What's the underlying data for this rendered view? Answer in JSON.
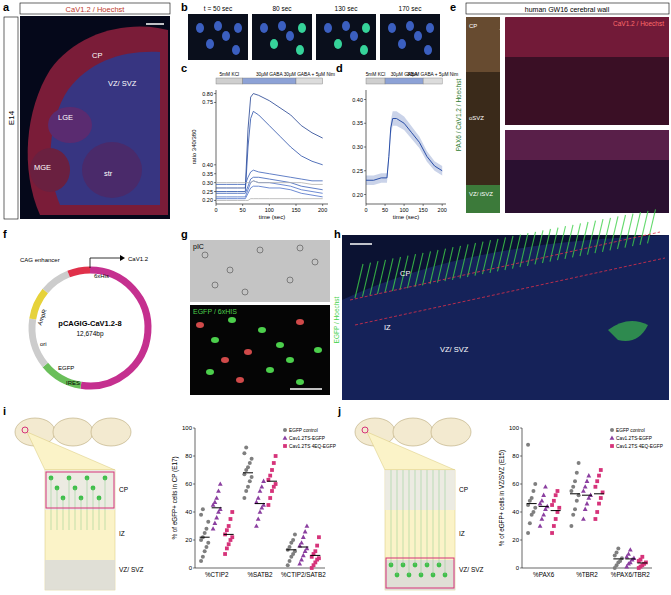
{
  "panel_labels": [
    "a",
    "b",
    "c",
    "d",
    "e",
    "f",
    "g",
    "h",
    "i",
    "j"
  ],
  "panels": {
    "a": {
      "stage": "E14",
      "title": "CaV1.2 / Hoechst",
      "regions": [
        "CP",
        "VZ/ SVZ",
        "LGE",
        "MGE",
        "str"
      ]
    },
    "b": {
      "times": [
        "t = 50 sec",
        "80 sec",
        "130 sec",
        "170 sec"
      ]
    },
    "e": {
      "title": "human GW16 cerebral wall",
      "stain_left": "PAX6 / CaV1.2 / Hoechst",
      "stain_right": "CaV1.2 / Hoechst",
      "regions": [
        "CP",
        "oSVZ",
        "VZ/ iSVZ"
      ]
    },
    "f": {
      "name": "pCAGIG-CaV1.2-8",
      "size": "12,674bp",
      "features": [
        "CAG enhancer",
        "CaV1.2",
        "6xHis",
        "AmpR",
        "ori",
        "EGFP",
        "IRES"
      ]
    },
    "g": {
      "top": "pIC",
      "bottom": "EGFP / 6xHIS"
    },
    "h": {
      "stain": "EGFP / Hoechst",
      "regions": [
        "CP",
        "IZ",
        "VZ/ SVZ"
      ]
    },
    "i": {
      "regions": [
        "CP",
        "IZ",
        "VZ/ SVZ"
      ]
    },
    "j": {
      "regions": [
        "CP",
        "IZ",
        "VZ/ SVZ"
      ]
    }
  },
  "chart_data": [
    {
      "type": "line",
      "x_label": "time (sec)",
      "y_label": "ratio 340/380",
      "x": [
        0,
        20,
        40,
        55,
        60,
        65,
        70,
        80,
        100,
        120,
        140,
        160,
        180,
        200
      ],
      "xlim": [
        0,
        210
      ],
      "xticks": [
        0,
        50,
        100,
        150,
        200
      ],
      "ylim": [
        0.18,
        0.82
      ],
      "yticks": [
        {
          "value": 0.2,
          "label": "0.20"
        },
        {
          "value": 0.25,
          "label": "0.25"
        },
        {
          "value": 0.3,
          "label": "0.30"
        },
        {
          "value": 0.35,
          "label": "0.35"
        },
        {
          "value": 0.4,
          "label": "0.40"
        },
        {
          "value": 0.75,
          "label": "0.75"
        },
        {
          "value": 0.8,
          "label": "0.80"
        }
      ],
      "stimuli": [
        {
          "label": "5mM KCl",
          "start": 0,
          "end": 50
        },
        {
          "label": "30µM GABA",
          "start": 50,
          "end": 150
        },
        {
          "label": "30µM GABA + 5µM Nim",
          "start": 150,
          "end": 200
        }
      ],
      "series": [
        {
          "color": "#1f3f8f",
          "values": [
            0.27,
            0.27,
            0.27,
            0.27,
            0.6,
            0.78,
            0.8,
            0.79,
            0.76,
            0.72,
            0.68,
            0.62,
            0.58,
            0.55
          ]
        },
        {
          "color": "#2a4fa8",
          "values": [
            0.25,
            0.25,
            0.25,
            0.25,
            0.5,
            0.66,
            0.7,
            0.68,
            0.62,
            0.56,
            0.5,
            0.45,
            0.42,
            0.4
          ]
        },
        {
          "color": "#3a5fb8",
          "values": [
            0.29,
            0.29,
            0.29,
            0.29,
            0.33,
            0.36,
            0.37,
            0.36,
            0.35,
            0.34,
            0.33,
            0.32,
            0.31,
            0.31
          ]
        },
        {
          "color": "#3a5fb8",
          "values": [
            0.24,
            0.24,
            0.24,
            0.24,
            0.28,
            0.32,
            0.33,
            0.33,
            0.32,
            0.31,
            0.3,
            0.28,
            0.27,
            0.26
          ]
        },
        {
          "color": "#4a6fc8",
          "values": [
            0.22,
            0.22,
            0.22,
            0.22,
            0.26,
            0.3,
            0.31,
            0.3,
            0.3,
            0.29,
            0.28,
            0.26,
            0.25,
            0.24
          ]
        },
        {
          "color": "#4a6fc8",
          "values": [
            0.21,
            0.21,
            0.21,
            0.21,
            0.24,
            0.27,
            0.28,
            0.28,
            0.27,
            0.27,
            0.26,
            0.24,
            0.23,
            0.22
          ]
        },
        {
          "color": "#b0b0b0",
          "values": [
            0.3,
            0.3,
            0.3,
            0.3,
            0.3,
            0.3,
            0.31,
            0.3,
            0.3,
            0.3,
            0.3,
            0.3,
            0.29,
            0.29
          ]
        },
        {
          "color": "#b0b0b0",
          "values": [
            0.2,
            0.2,
            0.2,
            0.2,
            0.2,
            0.21,
            0.21,
            0.21,
            0.21,
            0.21,
            0.21,
            0.21,
            0.21,
            0.21
          ]
        }
      ]
    },
    {
      "type": "line",
      "x": [
        0,
        20,
        40,
        55,
        60,
        65,
        70,
        80,
        100,
        120,
        140,
        160,
        180,
        200
      ],
      "xlim": [
        0,
        210
      ],
      "xticks": [
        0,
        50,
        100,
        150,
        200
      ],
      "x_label": "time (sec)",
      "ylim": [
        0.18,
        0.42
      ],
      "yticks": [
        {
          "value": 0.2,
          "label": "0.20"
        },
        {
          "value": 0.25,
          "label": "0.25"
        },
        {
          "value": 0.3,
          "label": "0.30"
        },
        {
          "value": 0.35,
          "label": "0.35"
        },
        {
          "value": 0.4,
          "label": "0.40"
        }
      ],
      "stimuli": [
        {
          "label": "5mM KCl",
          "start": 0,
          "end": 50
        },
        {
          "label": "30µM GABA",
          "start": 50,
          "end": 150
        },
        {
          "label": "30µM GABA + 5µM Nim",
          "start": 150,
          "end": 200
        }
      ],
      "color": "#2a4fa8",
      "values": [
        0.23,
        0.23,
        0.235,
        0.235,
        0.28,
        0.34,
        0.36,
        0.36,
        0.35,
        0.33,
        0.31,
        0.28,
        0.26,
        0.25
      ],
      "errors": [
        0.01,
        0.01,
        0.01,
        0.01,
        0.012,
        0.015,
        0.015,
        0.015,
        0.014,
        0.013,
        0.012,
        0.011,
        0.01,
        0.01
      ]
    },
    {
      "type": "dot",
      "y_label": "% of eGFP+ cells in CP (E17)",
      "categories": [
        "%CTIP2",
        "%SATB2",
        "%CTIP2/SATB2"
      ],
      "ylim": [
        0,
        100
      ],
      "yticks": [
        0,
        20,
        40,
        60,
        80,
        100
      ],
      "legend": "upper right",
      "series": [
        {
          "name": "EGFP control",
          "color": "#7f7f7f",
          "marker": "circle",
          "values": [
            [
              5,
              8,
              12,
              15,
              18,
              20,
              22,
              25,
              28,
              33,
              38,
              42
            ],
            [
              50,
              55,
              58,
              62,
              65,
              67,
              70,
              72,
              75,
              78,
              82,
              86
            ],
            [
              2,
              5,
              8,
              10,
              12,
              13,
              15,
              18,
              20,
              24
            ]
          ],
          "means": [
            22,
            68,
            13
          ]
        },
        {
          "name": "Cav1.2TS-EGFP",
          "color": "#8b3fa0",
          "marker": "triangle",
          "values": [
            [
              28,
              32,
              36,
              40,
              42,
              45,
              47,
              50,
              55,
              60
            ],
            [
              30,
              35,
              40,
              43,
              45,
              47,
              50,
              55,
              58,
              62
            ],
            [
              3,
              6,
              9,
              12,
              14,
              16,
              18,
              22,
              26,
              30
            ]
          ],
          "means": [
            43,
            46,
            15
          ]
        },
        {
          "name": "Cav1.2TS 4EQ-EGFP",
          "color": "#d6337a",
          "marker": "square",
          "values": [
            [
              10,
              14,
              17,
              20,
              22,
              24,
              27,
              30,
              35,
              40
            ],
            [
              45,
              50,
              55,
              58,
              60,
              63,
              66,
              70,
              75,
              80
            ],
            [
              0,
              2,
              4,
              6,
              7,
              8,
              10,
              12,
              16,
              22
            ]
          ],
          "means": [
            24,
            62,
            9
          ]
        }
      ]
    },
    {
      "type": "dot",
      "y_label": "% of eGFP+ cells in VZ/SVZ (E15)",
      "categories": [
        "%PAX6",
        "%TBR2",
        "%PAX6/TBR2"
      ],
      "ylim": [
        0,
        100
      ],
      "yticks": [
        0,
        20,
        40,
        60,
        80,
        100
      ],
      "legend": "upper right",
      "series": [
        {
          "name": "EGFP control",
          "color": "#7f7f7f",
          "marker": "circle",
          "values": [
            [
              25,
              32,
              38,
              40,
              43,
              45,
              48,
              50,
              55,
              60,
              88
            ],
            [
              30,
              38,
              42,
              48,
              52,
              55,
              58,
              62,
              68,
              75
            ],
            [
              0,
              2,
              4,
              5,
              7,
              9,
              11,
              14
            ]
          ],
          "means": [
            46,
            53,
            6.5
          ]
        },
        {
          "name": "Cav1.2TS-EGFP",
          "color": "#8b3fa0",
          "marker": "triangle",
          "values": [
            [
              30,
              35,
              38,
              42,
              44,
              46,
              48,
              52,
              58
            ],
            [
              35,
              42,
              46,
              50,
              52,
              55,
              58,
              62,
              66
            ],
            [
              1,
              3,
              4,
              6,
              7,
              8,
              10,
              13
            ]
          ],
          "means": [
            44,
            52,
            6.5
          ]
        },
        {
          "name": "Cav1.2TS 4EQ-EGFP",
          "color": "#d6337a",
          "marker": "square",
          "values": [
            [
              25,
              30,
              35,
              40,
              43,
              45,
              48,
              52,
              55
            ],
            [
              35,
              40,
              46,
              50,
              54,
              58,
              62,
              66,
              70
            ],
            [
              0,
              1,
              2,
              3,
              4,
              5,
              6,
              8
            ]
          ],
          "means": [
            41,
            53,
            3.6
          ]
        }
      ]
    }
  ]
}
